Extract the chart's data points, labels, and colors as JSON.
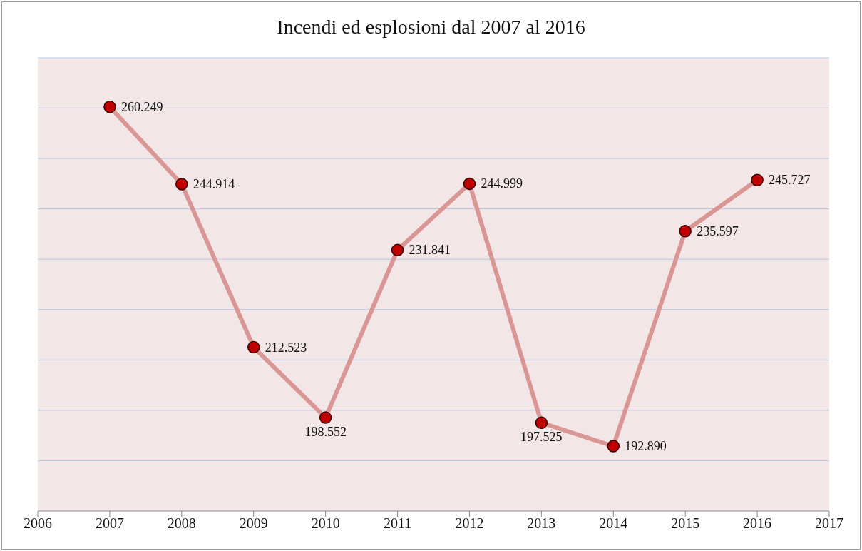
{
  "chart_data": {
    "type": "line",
    "title": "Incendi ed esplosioni dal 2007 al 2016",
    "x": [
      2007,
      2008,
      2009,
      2010,
      2011,
      2012,
      2013,
      2014,
      2015,
      2016
    ],
    "series": [
      {
        "color": "#d99694",
        "values": [
          260249,
          244914,
          212523,
          198552,
          231841,
          244999,
          197525,
          192890,
          235597,
          245727
        ],
        "value_labels": [
          "260.249",
          "244.914",
          "212.523",
          "198.552",
          "231.841",
          "244.999",
          "197.525",
          "192.890",
          "235.597",
          "245.727"
        ]
      }
    ],
    "marker": "circle",
    "xlim": [
      2006,
      2017
    ],
    "xticks": [
      2006,
      2007,
      2008,
      2009,
      2010,
      2011,
      2012,
      2013,
      2014,
      2015,
      2016,
      2017
    ],
    "ylim": [
      180000,
      270000
    ],
    "yticks": [
      {
        "value": 190000,
        "label": null
      },
      {
        "value": 200000,
        "label": null
      },
      {
        "value": 210000,
        "label": null
      },
      {
        "value": 220000,
        "label": null
      },
      {
        "value": 230000,
        "label": null
      },
      {
        "value": 240000,
        "label": null
      },
      {
        "value": 250000,
        "label": null
      },
      {
        "value": 260000,
        "label": null
      },
      {
        "value": 270000,
        "label": null
      }
    ],
    "tick_labels": "x",
    "grid": "y"
  }
}
